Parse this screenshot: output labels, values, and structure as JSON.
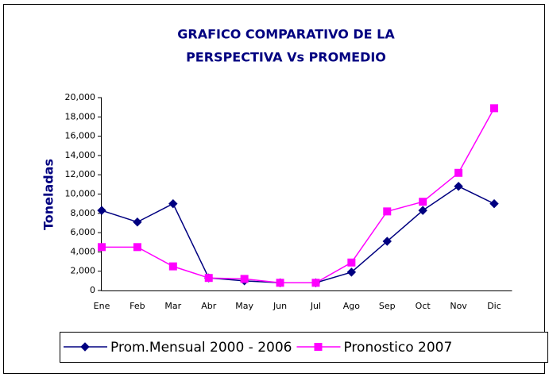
{
  "chart_data": {
    "type": "line",
    "title": [
      "GRAFICO COMPARATIVO DE LA",
      "PERSPECTIVA Vs PROMEDIO"
    ],
    "ylabel": "Toneladas",
    "categories": [
      "Ene",
      "Feb",
      "Mar",
      "Abr",
      "May",
      "Jun",
      "Jul",
      "Ago",
      "Sep",
      "Oct",
      "Nov",
      "Dic"
    ],
    "series": [
      {
        "name": "Prom.Mensual 2000 - 2006",
        "color": "#000080",
        "marker": "diamond",
        "values": [
          8300,
          7100,
          9000,
          1300,
          1000,
          800,
          800,
          1900,
          5100,
          8300,
          10800,
          9000
        ]
      },
      {
        "name": "Pronostico 2007",
        "color": "#ff00ff",
        "marker": "square",
        "values": [
          4500,
          4500,
          2500,
          1300,
          1200,
          800,
          800,
          2900,
          8200,
          9200,
          12200,
          18900
        ]
      }
    ],
    "ylim": [
      0,
      20000
    ],
    "yticks": [
      0,
      {
        "value": 2000,
        "label": "2,000"
      },
      {
        "value": 4000,
        "label": "4,000"
      },
      {
        "value": 6000,
        "label": "6,000"
      },
      {
        "value": 8000,
        "label": "8,000"
      },
      {
        "value": 10000,
        "label": "10,000"
      },
      {
        "value": 12000,
        "label": "12,000"
      },
      {
        "value": 14000,
        "label": "14,000"
      },
      {
        "value": 16000,
        "label": "16,000"
      },
      {
        "value": 18000,
        "label": "18,000"
      },
      {
        "value": 20000,
        "label": "20,000"
      }
    ],
    "legend": "bottom"
  }
}
